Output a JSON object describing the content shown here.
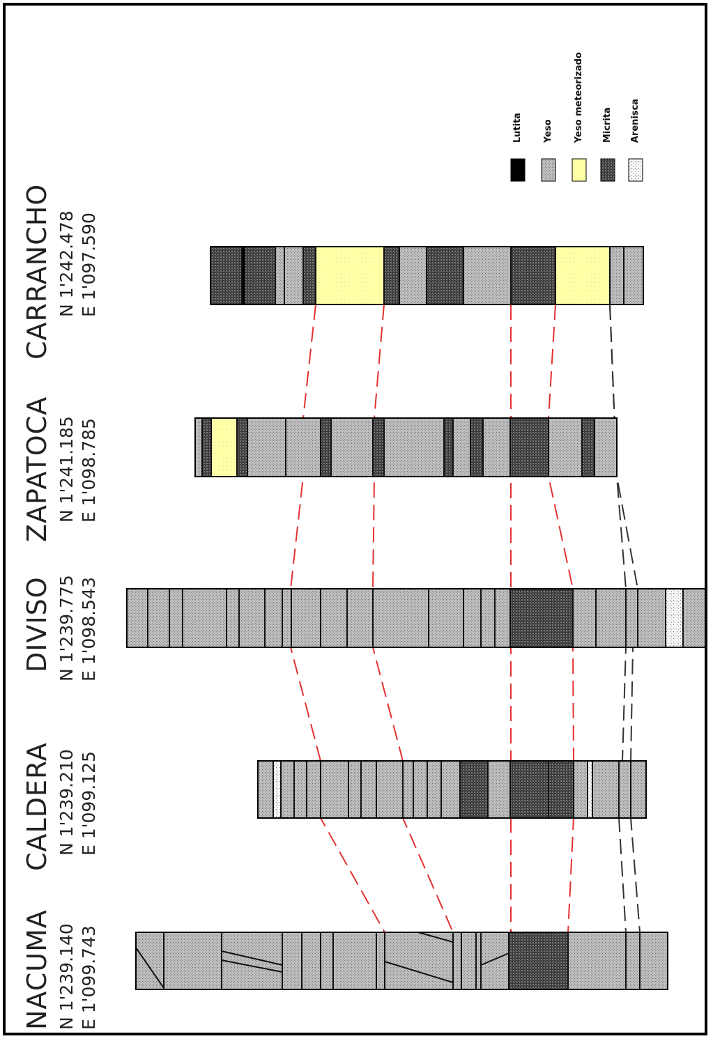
{
  "sections": [
    {
      "id": "nacuma",
      "name": "NACUMA",
      "north": "N 1'239.140",
      "east": "E 1'099.743"
    },
    {
      "id": "caldera",
      "name": "CALDERA",
      "north": "N 1'239.210",
      "east": "E 1'099.125"
    },
    {
      "id": "diviso",
      "name": "DIVISO",
      "north": "N 1'239.775",
      "east": "E 1'098.543"
    },
    {
      "id": "zapatoca",
      "name": "ZAPATOCA",
      "north": "N 1'241.185",
      "east": "E 1'098.785"
    },
    {
      "id": "carrancho",
      "name": "CARRANCHO",
      "north": "N 1'242.478",
      "east": "E 1'097.590"
    }
  ],
  "legend": [
    {
      "label": "Lutita",
      "lith": "lutita",
      "color": "#000000"
    },
    {
      "label": "Yeso",
      "lith": "yeso",
      "color": "#b8b8b8"
    },
    {
      "label": "Yeso meteorizado",
      "lith": "yeso_meteorizado",
      "color": "#ffffa8"
    },
    {
      "label": "Micrita",
      "lith": "micrita",
      "color": "#4a4a4a"
    },
    {
      "label": "Arenisca",
      "lith": "arenisca",
      "color": "#f0f0f0"
    }
  ],
  "colors": {
    "correlation_main": "#e53030",
    "correlation_secondary": "#333333",
    "frame": "#000000"
  }
}
